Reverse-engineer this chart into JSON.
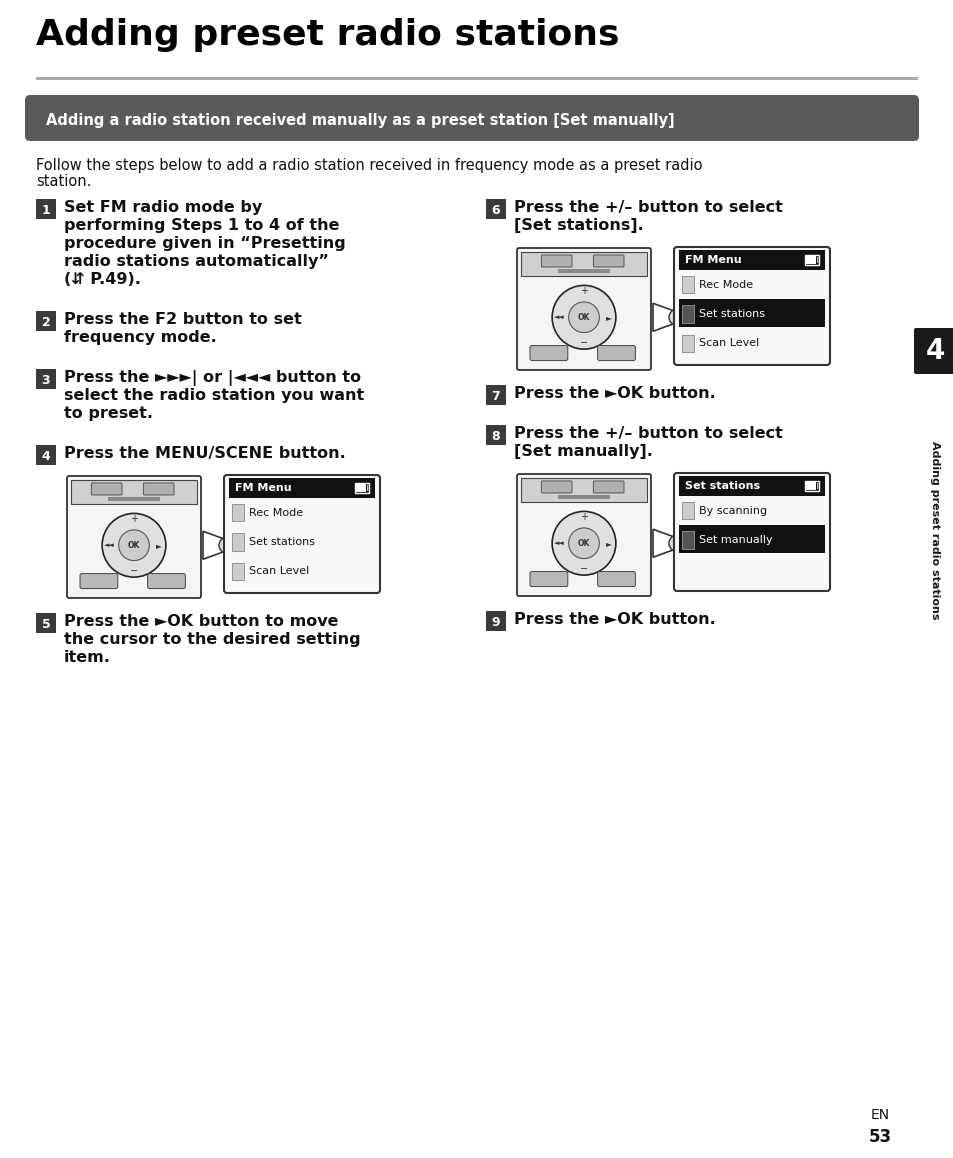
{
  "title": "Adding preset radio stations",
  "section_header": "Adding a radio station received manually as a preset station [Set manually]",
  "intro_line1": "Follow the steps below to add a radio station received in frequency mode as a preset radio",
  "intro_line2": "station.",
  "step1_lines": [
    "Set FM radio mode by",
    "performing Steps 1 to 4 of the",
    "procedure given in “Presetting",
    "radio stations automatically”",
    "(⇵ P.49)."
  ],
  "step2_lines": [
    "Press the F2 button to set",
    "frequency mode."
  ],
  "step3_lines": [
    "Press the ►►►| or |◄◄◄ button to",
    "select the radio station you want",
    "to preset."
  ],
  "step4_lines": [
    "Press the MENU/SCENE button."
  ],
  "step5_lines": [
    "Press the ►OK button to move",
    "the cursor to the desired setting",
    "item."
  ],
  "step6_lines": [
    "Press the +/– button to select",
    "[Set stations]."
  ],
  "step7_lines": [
    "Press the ►OK button."
  ],
  "step8_lines": [
    "Press the +/– button to select",
    "[Set manually]."
  ],
  "step9_lines": [
    "Press the ►OK button."
  ],
  "screen4_title": "FM Menu",
  "screen4_items": [
    "Rec Mode",
    "Set stations",
    "Scan Level"
  ],
  "screen4_selected": -1,
  "screen6_title": "FM Menu",
  "screen6_items": [
    "Rec Mode",
    "Set stations",
    "Scan Level"
  ],
  "screen6_selected": 1,
  "screen8_title": "Set stations",
  "screen8_items": [
    "By scanning",
    "Set manually"
  ],
  "screen8_selected": 1,
  "side_tab_num": "4",
  "side_tab_text": "Adding preset radio stations",
  "page_num": "53",
  "lang": "EN",
  "bg_color": "#ffffff",
  "header_bg": "#5a5a5a",
  "header_text_color": "#ffffff",
  "step_badge_bg": "#3a3a3a",
  "step_badge_fg": "#ffffff",
  "tab_bg": "#1a1a1a",
  "tab_fg": "#ffffff",
  "title_color": "#000000",
  "body_color": "#111111",
  "line_color": "#888888"
}
